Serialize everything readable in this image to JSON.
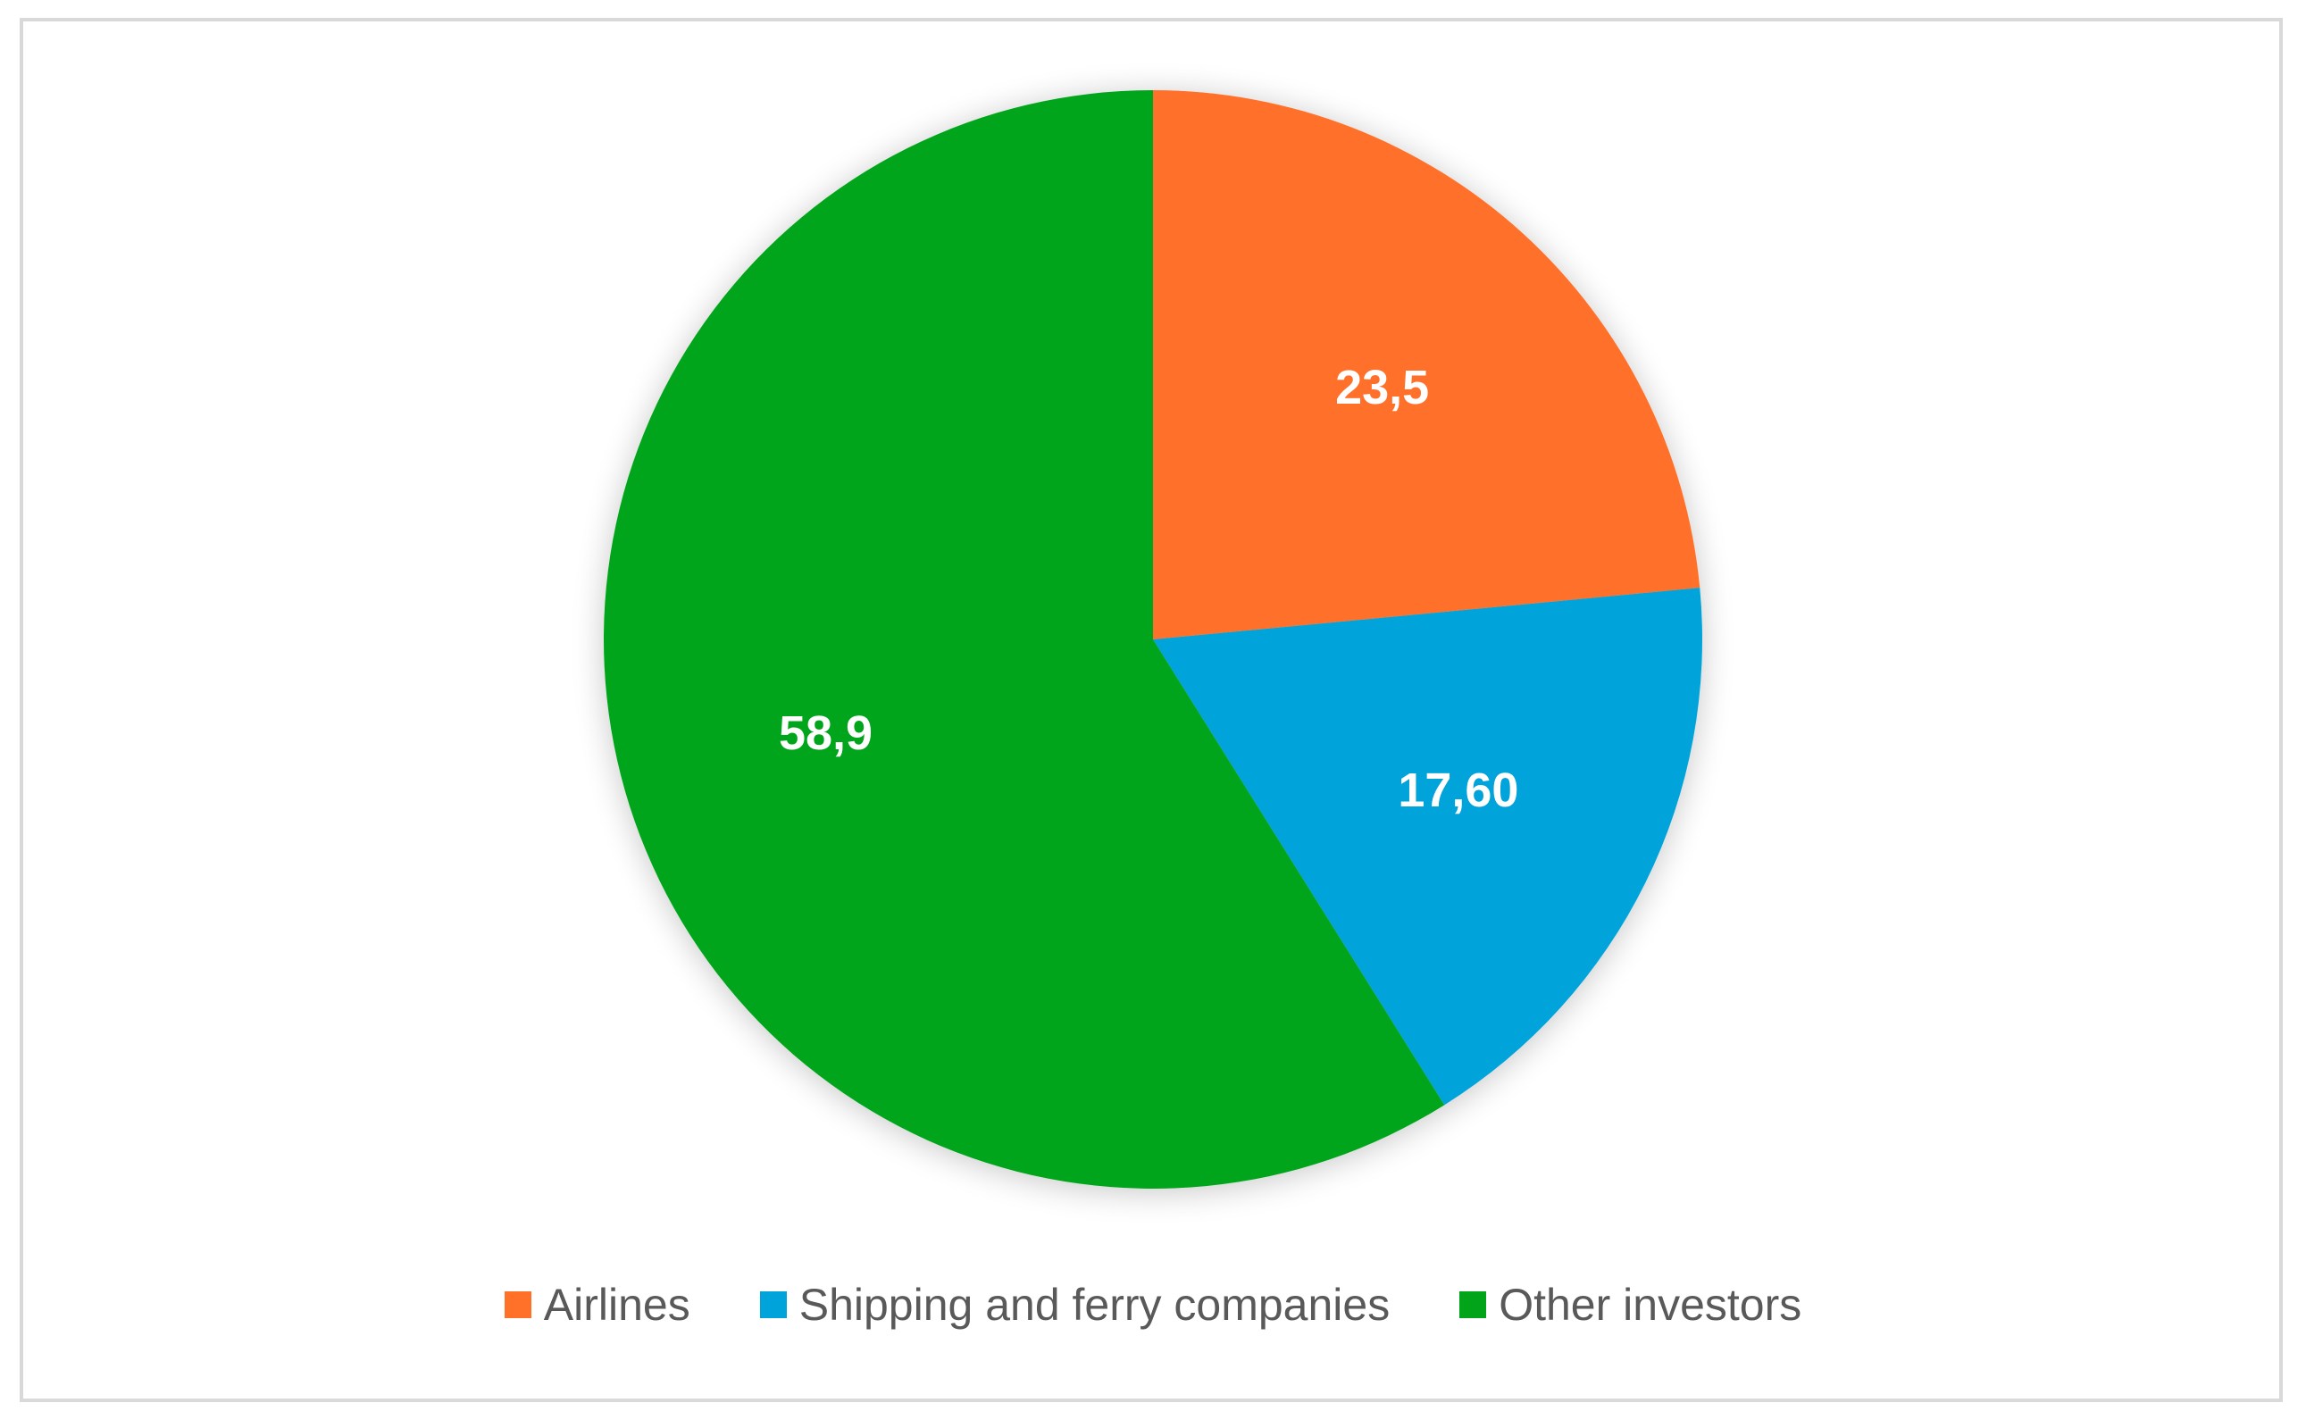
{
  "chart_data": {
    "type": "pie",
    "title": "",
    "categories": [
      "Airlines",
      "Shipping and ferry companies",
      "Other investors"
    ],
    "values": [
      23.5,
      17.6,
      58.9
    ],
    "data_labels": [
      "23,5",
      "17,60",
      "58,9"
    ],
    "colors": [
      "#FF7129",
      "#00A3DA",
      "#02A51A"
    ],
    "start_angle_deg": 0,
    "direction": "clockwise",
    "legend_position": "bottom"
  }
}
